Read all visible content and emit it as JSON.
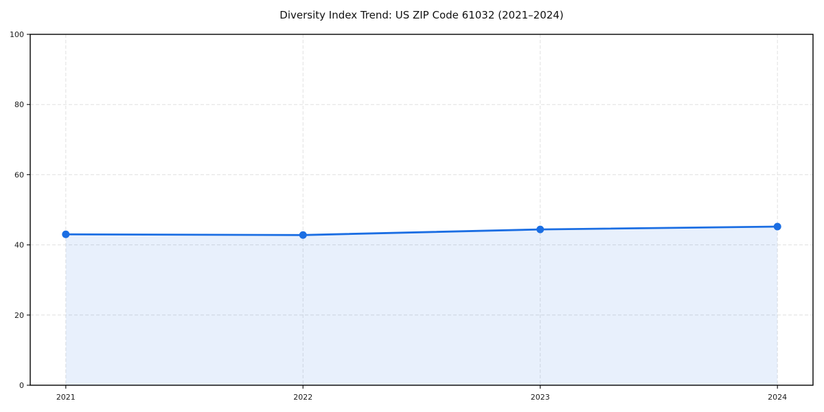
{
  "page": {
    "background_color": "#ffffff"
  },
  "chart_data": {
    "type": "area",
    "title": "Diversity Index Trend: US ZIP Code 61032 (2021–2024)",
    "series_name": "Diversity Index",
    "x": [
      2021,
      2022,
      2023,
      2024
    ],
    "values": [
      43.0,
      42.8,
      44.4,
      45.2
    ],
    "xlabel": "",
    "ylabel": "",
    "xlim": [
      2020.85,
      2024.15
    ],
    "ylim": [
      0,
      100
    ],
    "yticks": [
      0,
      20,
      40,
      60,
      80,
      100
    ],
    "xticks": [
      2021,
      2022,
      2023,
      2024
    ],
    "xtick_labels": [
      "2021",
      "2022",
      "2023",
      "2024"
    ],
    "ytick_labels": [
      "0",
      "20",
      "40",
      "60",
      "80",
      "100"
    ],
    "grid": true,
    "grid_style": "dashed",
    "grid_color": "#e0e0e0",
    "legend_position": "none",
    "line_color": "#1b6ee3",
    "fill_color": "rgba(27,110,227,0.10)",
    "marker": "circle",
    "marker_color": "#1b6ee3",
    "spine_color": "#000000",
    "tick_color": "#1a1a1a"
  }
}
